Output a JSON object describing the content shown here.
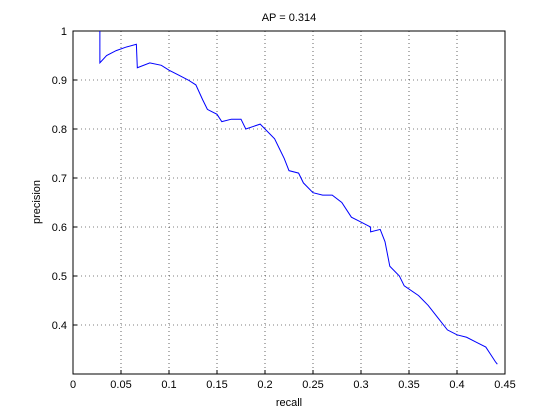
{
  "chart_data": {
    "type": "line",
    "title": "AP = 0.314",
    "x_label": "recall",
    "y_label": "precision",
    "x": [
      0.028,
      0.028,
      0.035,
      0.045,
      0.055,
      0.066,
      0.067,
      0.08,
      0.092,
      0.1,
      0.11,
      0.12,
      0.128,
      0.135,
      0.14,
      0.15,
      0.155,
      0.165,
      0.175,
      0.18,
      0.195,
      0.2,
      0.21,
      0.215,
      0.22,
      0.225,
      0.235,
      0.24,
      0.25,
      0.26,
      0.27,
      0.28,
      0.29,
      0.3,
      0.31,
      0.31,
      0.32,
      0.325,
      0.33,
      0.34,
      0.345,
      0.36,
      0.37,
      0.38,
      0.39,
      0.4,
      0.41,
      0.42,
      0.43,
      0.435,
      0.44,
      0.442
    ],
    "series": [
      {
        "color": "#0000ff",
        "values": [
          1.0,
          0.935,
          0.95,
          0.96,
          0.967,
          0.973,
          0.925,
          0.935,
          0.93,
          0.92,
          0.91,
          0.9,
          0.89,
          0.86,
          0.84,
          0.83,
          0.815,
          0.82,
          0.82,
          0.8,
          0.81,
          0.8,
          0.78,
          0.76,
          0.74,
          0.715,
          0.71,
          0.69,
          0.67,
          0.665,
          0.665,
          0.65,
          0.62,
          0.61,
          0.6,
          0.59,
          0.595,
          0.57,
          0.52,
          0.5,
          0.48,
          0.46,
          0.44,
          0.415,
          0.39,
          0.38,
          0.375,
          0.365,
          0.355,
          0.34,
          0.325,
          0.32
        ]
      }
    ],
    "xlim": [
      0,
      0.45
    ],
    "xticks": [
      0,
      0.05,
      0.1,
      0.15,
      0.2,
      0.25,
      0.3,
      0.35,
      0.4,
      0.45
    ],
    "ylim": [
      0.3,
      1
    ],
    "yticks": [
      0.4,
      0.5,
      0.6,
      0.7,
      0.8,
      0.9,
      1
    ],
    "grid": true
  }
}
